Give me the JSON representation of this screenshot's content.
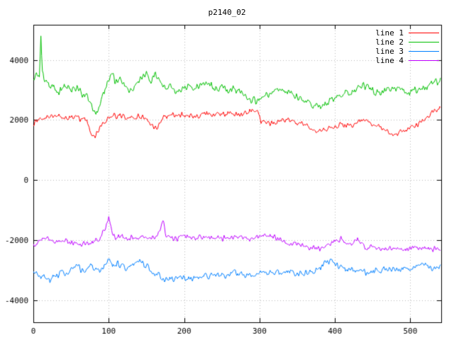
{
  "chart_data": {
    "type": "line",
    "title": "p2140_02",
    "xlabel": "",
    "ylabel": "",
    "xlim": [
      0,
      541
    ],
    "ylim": [
      -4730,
      5170
    ],
    "xticks": [
      0,
      100,
      200,
      300,
      400,
      500
    ],
    "yticks": [
      -4000,
      -2000,
      0,
      2000,
      4000
    ],
    "grid": "dotted",
    "legend_position": "top-right-inside",
    "series": [
      {
        "name": "line 1",
        "color": "#ff0000",
        "noise_amplitude": 110,
        "seed": 1,
        "trend": [
          [
            0,
            1850
          ],
          [
            10,
            2050
          ],
          [
            20,
            2150
          ],
          [
            40,
            2100
          ],
          [
            60,
            2050
          ],
          [
            70,
            2000
          ],
          [
            78,
            1500
          ],
          [
            82,
            1450
          ],
          [
            90,
            1850
          ],
          [
            100,
            2100
          ],
          [
            115,
            2150
          ],
          [
            130,
            2050
          ],
          [
            145,
            2150
          ],
          [
            158,
            1800
          ],
          [
            165,
            1750
          ],
          [
            172,
            2100
          ],
          [
            185,
            2200
          ],
          [
            200,
            2150
          ],
          [
            215,
            2150
          ],
          [
            230,
            2200
          ],
          [
            245,
            2200
          ],
          [
            260,
            2200
          ],
          [
            275,
            2200
          ],
          [
            290,
            2300
          ],
          [
            298,
            2250
          ],
          [
            302,
            1950
          ],
          [
            315,
            1900
          ],
          [
            330,
            2000
          ],
          [
            345,
            1950
          ],
          [
            360,
            1850
          ],
          [
            375,
            1650
          ],
          [
            385,
            1700
          ],
          [
            395,
            1750
          ],
          [
            410,
            1850
          ],
          [
            420,
            1800
          ],
          [
            432,
            1950
          ],
          [
            440,
            2000
          ],
          [
            450,
            1850
          ],
          [
            462,
            1750
          ],
          [
            470,
            1600
          ],
          [
            482,
            1550
          ],
          [
            492,
            1650
          ],
          [
            500,
            1700
          ],
          [
            510,
            1850
          ],
          [
            518,
            2050
          ],
          [
            525,
            2150
          ],
          [
            532,
            2300
          ],
          [
            540,
            2400
          ]
        ]
      },
      {
        "name": "line 2",
        "color": "#00c000",
        "noise_amplitude": 150,
        "seed": 2,
        "trend": [
          [
            0,
            3350
          ],
          [
            4,
            3500
          ],
          [
            8,
            3450
          ],
          [
            10,
            4800
          ],
          [
            12,
            3600
          ],
          [
            15,
            3300
          ],
          [
            20,
            3250
          ],
          [
            28,
            3050
          ],
          [
            35,
            2950
          ],
          [
            42,
            3150
          ],
          [
            50,
            2950
          ],
          [
            58,
            3050
          ],
          [
            65,
            2850
          ],
          [
            72,
            2750
          ],
          [
            78,
            2400
          ],
          [
            85,
            2250
          ],
          [
            90,
            2650
          ],
          [
            95,
            3050
          ],
          [
            100,
            3300
          ],
          [
            104,
            3650
          ],
          [
            108,
            3250
          ],
          [
            115,
            3350
          ],
          [
            122,
            3150
          ],
          [
            128,
            2950
          ],
          [
            135,
            3150
          ],
          [
            142,
            3350
          ],
          [
            150,
            3500
          ],
          [
            156,
            3300
          ],
          [
            162,
            3600
          ],
          [
            168,
            3250
          ],
          [
            175,
            3050
          ],
          [
            182,
            3150
          ],
          [
            190,
            2950
          ],
          [
            198,
            3050
          ],
          [
            205,
            3150
          ],
          [
            212,
            3050
          ],
          [
            220,
            3150
          ],
          [
            228,
            3250
          ],
          [
            235,
            3150
          ],
          [
            242,
            3050
          ],
          [
            250,
            3150
          ],
          [
            258,
            2950
          ],
          [
            265,
            3050
          ],
          [
            272,
            2950
          ],
          [
            280,
            2850
          ],
          [
            288,
            2700
          ],
          [
            295,
            2650
          ],
          [
            302,
            2750
          ],
          [
            310,
            2850
          ],
          [
            318,
            2950
          ],
          [
            325,
            3050
          ],
          [
            332,
            2950
          ],
          [
            340,
            2900
          ],
          [
            348,
            2800
          ],
          [
            355,
            2750
          ],
          [
            362,
            2600
          ],
          [
            370,
            2500
          ],
          [
            378,
            2400
          ],
          [
            385,
            2500
          ],
          [
            392,
            2600
          ],
          [
            400,
            2750
          ],
          [
            408,
            2850
          ],
          [
            415,
            2950
          ],
          [
            422,
            2900
          ],
          [
            430,
            3050
          ],
          [
            438,
            3150
          ],
          [
            445,
            3050
          ],
          [
            452,
            2950
          ],
          [
            460,
            2900
          ],
          [
            468,
            3000
          ],
          [
            475,
            3100
          ],
          [
            482,
            3050
          ],
          [
            490,
            2950
          ],
          [
            498,
            2900
          ],
          [
            505,
            3000
          ],
          [
            512,
            3050
          ],
          [
            520,
            3100
          ],
          [
            528,
            3200
          ],
          [
            535,
            3250
          ],
          [
            540,
            3300
          ]
        ]
      },
      {
        "name": "line 3",
        "color": "#0080ff",
        "noise_amplitude": 140,
        "seed": 3,
        "trend": [
          [
            0,
            -3000
          ],
          [
            8,
            -3150
          ],
          [
            15,
            -3250
          ],
          [
            22,
            -3350
          ],
          [
            30,
            -3150
          ],
          [
            38,
            -3050
          ],
          [
            45,
            -3150
          ],
          [
            52,
            -2950
          ],
          [
            60,
            -2900
          ],
          [
            68,
            -3050
          ],
          [
            75,
            -2850
          ],
          [
            82,
            -2950
          ],
          [
            88,
            -3150
          ],
          [
            95,
            -2850
          ],
          [
            100,
            -2600
          ],
          [
            106,
            -2850
          ],
          [
            112,
            -2750
          ],
          [
            118,
            -2850
          ],
          [
            125,
            -2950
          ],
          [
            132,
            -2800
          ],
          [
            140,
            -2650
          ],
          [
            148,
            -2800
          ],
          [
            155,
            -2950
          ],
          [
            162,
            -3100
          ],
          [
            170,
            -3250
          ],
          [
            178,
            -3300
          ],
          [
            185,
            -3250
          ],
          [
            192,
            -3300
          ],
          [
            200,
            -3250
          ],
          [
            210,
            -3300
          ],
          [
            220,
            -3250
          ],
          [
            230,
            -3200
          ],
          [
            240,
            -3150
          ],
          [
            250,
            -3200
          ],
          [
            260,
            -3150
          ],
          [
            270,
            -3100
          ],
          [
            280,
            -3150
          ],
          [
            290,
            -3100
          ],
          [
            300,
            -3150
          ],
          [
            310,
            -3100
          ],
          [
            320,
            -3050
          ],
          [
            330,
            -3100
          ],
          [
            340,
            -3000
          ],
          [
            350,
            -3100
          ],
          [
            360,
            -3050
          ],
          [
            370,
            -3000
          ],
          [
            380,
            -2900
          ],
          [
            388,
            -2750
          ],
          [
            395,
            -2700
          ],
          [
            402,
            -2800
          ],
          [
            410,
            -2900
          ],
          [
            418,
            -3000
          ],
          [
            426,
            -2950
          ],
          [
            435,
            -3000
          ],
          [
            444,
            -3100
          ],
          [
            452,
            -3050
          ],
          [
            460,
            -3000
          ],
          [
            470,
            -2950
          ],
          [
            480,
            -3000
          ],
          [
            490,
            -2950
          ],
          [
            500,
            -2900
          ],
          [
            510,
            -2850
          ],
          [
            520,
            -2850
          ],
          [
            530,
            -2950
          ],
          [
            540,
            -2850
          ]
        ]
      },
      {
        "name": "line 4",
        "color": "#c000ff",
        "noise_amplitude": 110,
        "seed": 4,
        "trend": [
          [
            0,
            -2150
          ],
          [
            8,
            -2050
          ],
          [
            15,
            -1950
          ],
          [
            22,
            -2000
          ],
          [
            30,
            -2050
          ],
          [
            38,
            -2000
          ],
          [
            45,
            -2050
          ],
          [
            52,
            -2100
          ],
          [
            60,
            -2150
          ],
          [
            68,
            -2100
          ],
          [
            75,
            -2150
          ],
          [
            82,
            -2050
          ],
          [
            90,
            -1850
          ],
          [
            96,
            -1600
          ],
          [
            100,
            -1250
          ],
          [
            104,
            -1750
          ],
          [
            110,
            -1950
          ],
          [
            118,
            -1850
          ],
          [
            125,
            -2000
          ],
          [
            132,
            -1900
          ],
          [
            140,
            -1950
          ],
          [
            148,
            -1900
          ],
          [
            155,
            -1950
          ],
          [
            162,
            -1900
          ],
          [
            168,
            -1700
          ],
          [
            172,
            -1300
          ],
          [
            176,
            -1800
          ],
          [
            182,
            -1900
          ],
          [
            190,
            -1950
          ],
          [
            200,
            -1900
          ],
          [
            210,
            -1950
          ],
          [
            220,
            -1900
          ],
          [
            230,
            -1950
          ],
          [
            240,
            -1900
          ],
          [
            250,
            -1950
          ],
          [
            260,
            -1900
          ],
          [
            270,
            -1950
          ],
          [
            280,
            -1900
          ],
          [
            290,
            -1950
          ],
          [
            300,
            -1900
          ],
          [
            310,
            -1850
          ],
          [
            320,
            -1900
          ],
          [
            330,
            -2000
          ],
          [
            340,
            -2100
          ],
          [
            350,
            -2150
          ],
          [
            360,
            -2200
          ],
          [
            370,
            -2250
          ],
          [
            380,
            -2300
          ],
          [
            390,
            -2200
          ],
          [
            400,
            -2050
          ],
          [
            408,
            -1950
          ],
          [
            415,
            -2100
          ],
          [
            422,
            -2150
          ],
          [
            430,
            -1950
          ],
          [
            438,
            -2200
          ],
          [
            445,
            -2250
          ],
          [
            452,
            -2200
          ],
          [
            460,
            -2250
          ],
          [
            470,
            -2300
          ],
          [
            480,
            -2250
          ],
          [
            490,
            -2300
          ],
          [
            500,
            -2250
          ],
          [
            510,
            -2300
          ],
          [
            520,
            -2250
          ],
          [
            530,
            -2300
          ],
          [
            540,
            -2300
          ]
        ]
      }
    ]
  }
}
